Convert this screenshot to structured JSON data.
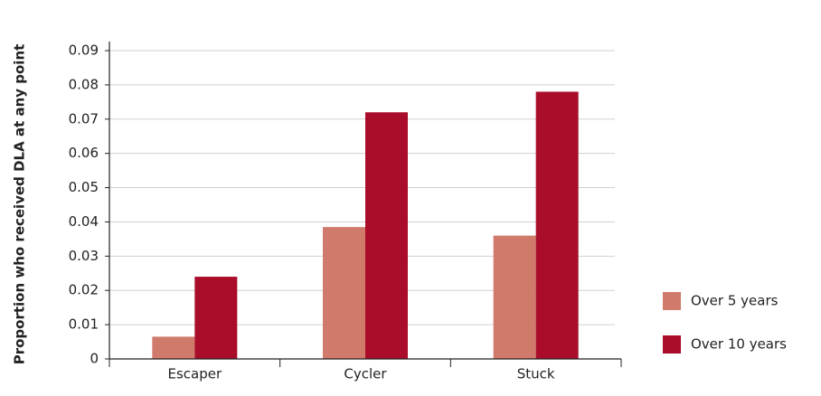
{
  "chart_data": {
    "type": "bar",
    "y_label": "Proportion who received DLA at any point",
    "categories": [
      "Escaper",
      "Cycler",
      "Stuck"
    ],
    "series": [
      {
        "name": "Over 5 years",
        "color": "#d07a6c",
        "values": [
          0.0065,
          0.0385,
          0.036
        ]
      },
      {
        "name": "Over 10 years",
        "color": "#a90d2a",
        "values": [
          0.024,
          0.072,
          0.078
        ]
      }
    ],
    "ylim": [
      0,
      0.09
    ],
    "yticks": [
      0,
      0.01,
      0.02,
      0.03,
      0.04,
      0.05,
      0.06,
      0.07,
      0.08,
      0.09
    ],
    "grid": true,
    "legend": "right"
  }
}
